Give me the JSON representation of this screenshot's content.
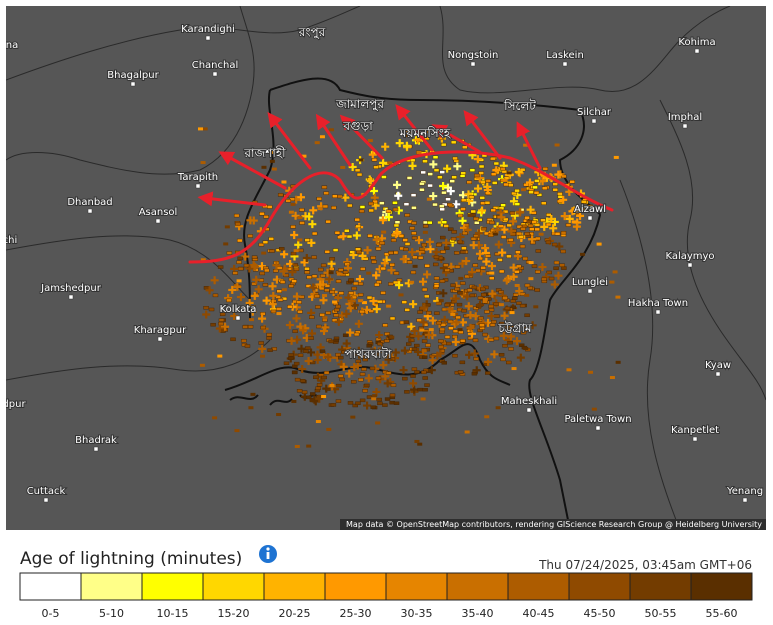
{
  "map": {
    "places": [
      "Karandighi",
      "Chanchal",
      "Bhagalpur",
      "Nongstoin",
      "Laskein",
      "Kohima",
      "Silchar",
      "Imphal",
      "Tarapith",
      "Dhanbad",
      "Asansol",
      "Jamshedpur",
      "Kharagpur",
      "Kolkata",
      "Lunglei",
      "Hakha Town",
      "Kalaymyo",
      "Kyaw",
      "Maheskhali",
      "Paletwa Town",
      "Kanpetlet",
      "Bhadrak",
      "Cuttack",
      "Yenang",
      "Aizawl",
      "na",
      "chi",
      "dpur"
    ],
    "bengali_places": [
      "রংপুর",
      "জামালপুর",
      "বগুড়া",
      "রাজশাহী",
      "ময়মনসিংহ",
      "সিলেট",
      "চট্টগ্রাম",
      "পাথরঘাটা"
    ],
    "attribution": "Map data © OpenStreetMap contributors, rendering GIScience Research Group @ Heidelberg University"
  },
  "legend": {
    "title": "Age of lightning (minutes)",
    "timestamp": "Thu 07/24/2025, 03:45am GMT+06",
    "items": [
      {
        "label": "0-5",
        "color": "#ffffff"
      },
      {
        "label": "5-10",
        "color": "#ffff88"
      },
      {
        "label": "10-15",
        "color": "#ffff00"
      },
      {
        "label": "15-20",
        "color": "#ffd700"
      },
      {
        "label": "20-25",
        "color": "#ffb300"
      },
      {
        "label": "25-30",
        "color": "#ff9900"
      },
      {
        "label": "30-35",
        "color": "#e68500"
      },
      {
        "label": "35-40",
        "color": "#c96f00"
      },
      {
        "label": "40-45",
        "color": "#ad5c00"
      },
      {
        "label": "45-50",
        "color": "#8f4a00"
      },
      {
        "label": "50-55",
        "color": "#733c00"
      },
      {
        "label": "55-60",
        "color": "#5a2f00"
      }
    ]
  }
}
